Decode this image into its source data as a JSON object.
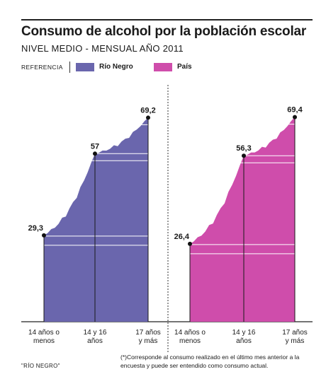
{
  "title": "Consumo de alcohol por la población escolar",
  "subtitle": "NIVEL MEDIO - MENSUAL AÑO 2011",
  "legend": {
    "heading": "REFERENCIA",
    "items": [
      {
        "label": "Río Negro",
        "color": "#6a66ad"
      },
      {
        "label": "País",
        "color": "#cf4dab"
      }
    ]
  },
  "chart_data": {
    "type": "area",
    "categories": [
      "14 años o menos",
      "14 y 16 años",
      "17 años y más"
    ],
    "category_lines": [
      [
        "14 años o",
        "menos"
      ],
      [
        "14 y 16",
        "años"
      ],
      [
        "17 años",
        "y más"
      ]
    ],
    "ylim": [
      0,
      75
    ],
    "series": [
      {
        "name": "Río Negro",
        "color": "#6a66ad",
        "values": [
          29.3,
          57,
          69.2
        ],
        "labels": [
          "29,3",
          "57",
          "69,2"
        ]
      },
      {
        "name": "País",
        "color": "#cf4dab",
        "values": [
          26.4,
          56.3,
          69.4
        ],
        "labels": [
          "26,4",
          "56,3",
          "69,4"
        ]
      }
    ]
  },
  "footnote": "(*)Corresponde al consumo realizado en el último mes anterior a la encuesta y puede ser entendido como consumo actual.",
  "footer_left": "\"RÍO NEGRO\""
}
